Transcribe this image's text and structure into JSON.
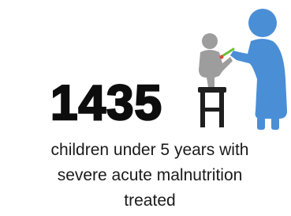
{
  "stat": {
    "value": "1435",
    "caption_lines": [
      "children under 5 years with",
      "severe acute malnutrition",
      "treated"
    ]
  }
}
